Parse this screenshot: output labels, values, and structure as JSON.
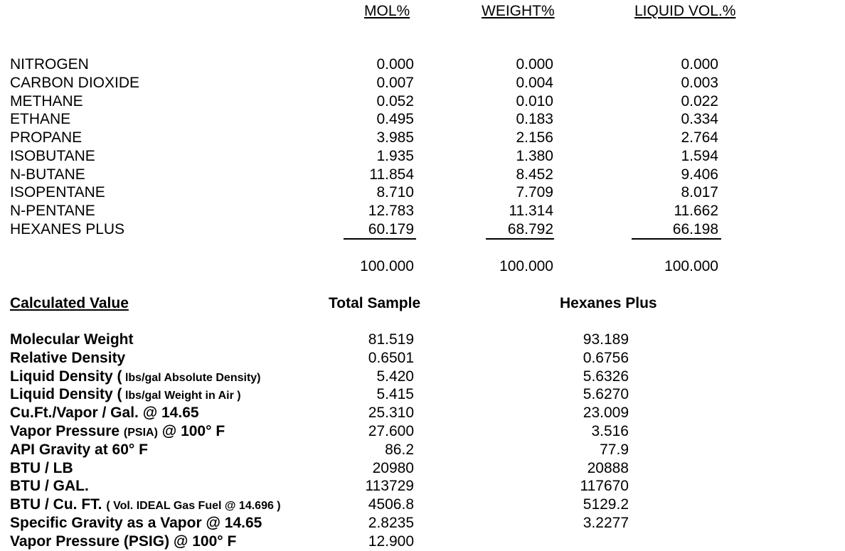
{
  "headers": {
    "mol": "MOL%",
    "weight": "WEIGHT%",
    "liquid_vol": "LIQUID VOL.%"
  },
  "components": [
    {
      "name": "NITROGEN",
      "mol": "0.000",
      "weight": "0.000",
      "liquid_vol": "0.000"
    },
    {
      "name": "CARBON DIOXIDE",
      "mol": "0.007",
      "weight": "0.004",
      "liquid_vol": "0.003"
    },
    {
      "name": "METHANE",
      "mol": "0.052",
      "weight": "0.010",
      "liquid_vol": "0.022"
    },
    {
      "name": "ETHANE",
      "mol": "0.495",
      "weight": "0.183",
      "liquid_vol": "0.334"
    },
    {
      "name": "PROPANE",
      "mol": "3.985",
      "weight": "2.156",
      "liquid_vol": "2.764"
    },
    {
      "name": "ISOBUTANE",
      "mol": "1.935",
      "weight": "1.380",
      "liquid_vol": "1.594"
    },
    {
      "name": "N-BUTANE",
      "mol": "11.854",
      "weight": "8.452",
      "liquid_vol": "9.406"
    },
    {
      "name": "ISOPENTANE",
      "mol": "8.710",
      "weight": "7.709",
      "liquid_vol": "8.017"
    },
    {
      "name": "N-PENTANE",
      "mol": "12.783",
      "weight": "11.314",
      "liquid_vol": "11.662"
    },
    {
      "name": "HEXANES PLUS",
      "mol": "60.179",
      "weight": "68.792",
      "liquid_vol": "66.198"
    }
  ],
  "totals": {
    "mol": "100.000",
    "weight": "100.000",
    "liquid_vol": "100.000"
  },
  "calculated": {
    "title": "Calculated Value",
    "total_sample_header": "Total Sample",
    "hexanes_plus_header": "Hexanes Plus",
    "rows": [
      {
        "label": "Molecular Weight",
        "note": "",
        "suffix": "",
        "total": "81.519",
        "hexanes": "93.189"
      },
      {
        "label": "Relative Density",
        "note": "",
        "suffix": "",
        "total": "0.6501",
        "hexanes": "0.6756"
      },
      {
        "label": "Liquid Density (",
        "note": " lbs/gal Absolute Density)",
        "suffix": "",
        "total": "5.420",
        "hexanes": "5.6326"
      },
      {
        "label": "Liquid Density (",
        "note": " lbs/gal Weight in Air )",
        "suffix": "",
        "total": "5.415",
        "hexanes": "5.6270"
      },
      {
        "label": "Cu.Ft./Vapor / Gal. @ 14.65",
        "note": "",
        "suffix": "",
        "total": "25.310",
        "hexanes": "23.009"
      },
      {
        "label": "Vapor Pressure ",
        "note": "(PSIA)",
        "suffix": " @ 100° F",
        "total": "27.600",
        "hexanes": "3.516"
      },
      {
        "label": "API Gravity at 60° F",
        "note": "",
        "suffix": "",
        "total": "86.2",
        "hexanes": "77.9"
      },
      {
        "label": "BTU / LB",
        "note": "",
        "suffix": "",
        "total": "20980",
        "hexanes": "20888"
      },
      {
        "label": "BTU / GAL.",
        "note": "",
        "suffix": "",
        "total": "113729",
        "hexanes": "117670"
      },
      {
        "label": "BTU / Cu. FT. ",
        "note": "( Vol. IDEAL Gas Fuel @ 14.696 )",
        "suffix": "",
        "total": "4506.8",
        "hexanes": "5129.2"
      },
      {
        "label": "Specific Gravity as a Vapor @ 14.65",
        "note": "",
        "suffix": "",
        "total": "2.8235",
        "hexanes": "3.2277"
      },
      {
        "label": "Vapor Pressure (PSIG) @ 100° F",
        "note": "",
        "suffix": "",
        "total": "12.900",
        "hexanes": ""
      }
    ]
  }
}
